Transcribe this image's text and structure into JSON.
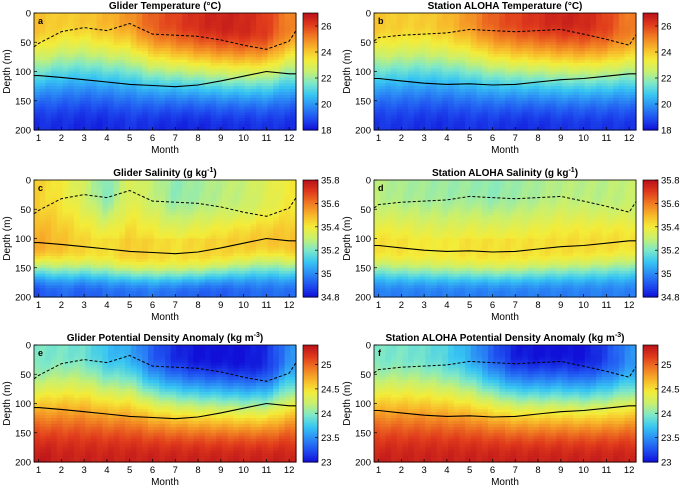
{
  "figure": {
    "description_labels": [
      "a",
      "b",
      "c",
      "d",
      "e",
      "f"
    ]
  },
  "colormap": [
    "#1010d8",
    "#1f4ff0",
    "#2b8bf5",
    "#38c6f2",
    "#7ee8c8",
    "#c8f070",
    "#f4ec38",
    "#f8b62a",
    "#f07a22",
    "#e03a1c",
    "#b8101a"
  ],
  "line_colors": {
    "mld": "#000000",
    "dcm": "#000000"
  },
  "chart_data": [
    {
      "id": "a",
      "type": "heatmap",
      "title": "Glider Temperature (°C)",
      "xlabel": "Month",
      "ylabel": "Depth (m)",
      "xlim": [
        0.8,
        12.3
      ],
      "ylim": [
        200,
        0
      ],
      "xticks": [
        "1",
        "2",
        "3",
        "4",
        "5",
        "6",
        "7",
        "8",
        "9",
        "10",
        "11",
        "12"
      ],
      "yticks": [
        "0",
        "50",
        "100",
        "150",
        "200"
      ],
      "colorbar": {
        "min": 18,
        "max": 27,
        "ticks": [
          "18",
          "20",
          "22",
          "24",
          "26"
        ]
      },
      "surface_values": [
        24.1,
        23.9,
        24.0,
        24.3,
        24.8,
        25.6,
        26.0,
        26.4,
        26.6,
        26.5,
        26.1,
        25.0
      ],
      "deep_values": [
        18.4,
        18.4,
        18.3,
        18.3,
        18.5,
        18.4,
        18.3,
        18.3,
        18.4,
        18.4,
        18.5,
        18.4
      ],
      "lower_line_depth": [
        107,
        110,
        114,
        118,
        122,
        124,
        126,
        123,
        116,
        108,
        100,
        104
      ],
      "dashed_line_depth": [
        52,
        32,
        25,
        30,
        18,
        36,
        38,
        40,
        46,
        55,
        62,
        48
      ]
    },
    {
      "id": "b",
      "type": "heatmap",
      "title": "Station ALOHA Temperature (°C)",
      "xlabel": "Month",
      "ylabel": "",
      "xlim": [
        0.8,
        12.3
      ],
      "ylim": [
        200,
        0
      ],
      "xticks": [
        "1",
        "2",
        "3",
        "4",
        "5",
        "6",
        "7",
        "8",
        "9",
        "10",
        "11",
        "12"
      ],
      "yticks": [
        "0",
        "50",
        "100",
        "150",
        "200"
      ],
      "colorbar": {
        "min": 18,
        "max": 27,
        "ticks": [
          "18",
          "20",
          "22",
          "24",
          "26"
        ]
      },
      "surface_values": [
        24.0,
        23.9,
        23.9,
        24.2,
        24.8,
        25.6,
        26.0,
        26.3,
        26.6,
        26.5,
        26.0,
        25.1
      ],
      "deep_values": [
        18.5,
        18.5,
        18.4,
        18.4,
        18.5,
        18.5,
        18.4,
        18.4,
        18.5,
        18.5,
        18.5,
        18.5
      ],
      "lower_line_depth": [
        112,
        116,
        120,
        122,
        121,
        123,
        122,
        118,
        114,
        112,
        108,
        104
      ],
      "dashed_line_depth": [
        42,
        38,
        36,
        34,
        28,
        30,
        32,
        30,
        28,
        36,
        45,
        55
      ]
    },
    {
      "id": "c",
      "type": "heatmap",
      "title": "Glider Salinity (g kg",
      "title_sup": "-1",
      "title_end": ")",
      "xlabel": "Month",
      "ylabel": "Depth (m)",
      "xlim": [
        0.8,
        12.3
      ],
      "ylim": [
        200,
        0
      ],
      "xticks": [
        "1",
        "2",
        "3",
        "4",
        "5",
        "6",
        "7",
        "8",
        "9",
        "10",
        "11",
        "12"
      ],
      "yticks": [
        "0",
        "50",
        "100",
        "150",
        "200"
      ],
      "colorbar": {
        "min": 34.8,
        "max": 35.8,
        "ticks": [
          "34.8",
          "35",
          "35.2",
          "35.4",
          "35.6",
          "35.8"
        ]
      },
      "surface_values": [
        35.45,
        35.4,
        35.32,
        35.2,
        35.35,
        35.3,
        35.22,
        35.25,
        35.28,
        35.3,
        35.35,
        35.4
      ],
      "mid_values": [
        35.52,
        35.48,
        35.44,
        35.42,
        35.46,
        35.44,
        35.42,
        35.44,
        35.45,
        35.46,
        35.47,
        35.48
      ],
      "deep_values": [
        34.9,
        34.95,
        34.92,
        34.95,
        34.95,
        34.97,
        34.95,
        34.93,
        34.92,
        34.94,
        34.95,
        34.95
      ],
      "lower_line_depth": [
        107,
        110,
        114,
        118,
        122,
        124,
        126,
        123,
        116,
        108,
        100,
        104
      ],
      "dashed_line_depth": [
        52,
        32,
        25,
        30,
        18,
        36,
        38,
        40,
        46,
        55,
        62,
        48
      ]
    },
    {
      "id": "d",
      "type": "heatmap",
      "title": "Station ALOHA Salinity (g kg",
      "title_sup": "-1",
      "title_end": ")",
      "xlabel": "Month",
      "ylabel": "",
      "xlim": [
        0.8,
        12.3
      ],
      "ylim": [
        200,
        0
      ],
      "xticks": [
        "1",
        "2",
        "3",
        "4",
        "5",
        "6",
        "7",
        "8",
        "9",
        "10",
        "11",
        "12"
      ],
      "yticks": [
        "0",
        "50",
        "100",
        "150",
        "200"
      ],
      "colorbar": {
        "min": 34.8,
        "max": 35.8,
        "ticks": [
          "34.8",
          "35",
          "35.2",
          "35.4",
          "35.6",
          "35.8"
        ]
      },
      "surface_values": [
        35.28,
        35.26,
        35.25,
        35.24,
        35.24,
        35.22,
        35.24,
        35.26,
        35.28,
        35.28,
        35.28,
        35.3
      ],
      "mid_values": [
        35.42,
        35.42,
        35.4,
        35.4,
        35.42,
        35.42,
        35.42,
        35.42,
        35.43,
        35.43,
        35.43,
        35.42
      ],
      "deep_values": [
        34.98,
        34.98,
        34.98,
        34.98,
        34.98,
        34.98,
        34.98,
        34.98,
        34.98,
        34.98,
        34.98,
        34.98
      ],
      "lower_line_depth": [
        112,
        116,
        120,
        122,
        121,
        123,
        122,
        118,
        114,
        112,
        108,
        104
      ],
      "dashed_line_depth": [
        42,
        38,
        36,
        34,
        28,
        30,
        32,
        30,
        28,
        36,
        45,
        55
      ]
    },
    {
      "id": "e",
      "type": "heatmap",
      "title": "Glider Potential Density Anomaly (kg m",
      "title_sup": "-3",
      "title_end": ")",
      "xlabel": "Month",
      "ylabel": "Depth (m)",
      "xlim": [
        0.8,
        12.3
      ],
      "ylim": [
        200,
        0
      ],
      "xticks": [
        "1",
        "2",
        "3",
        "4",
        "5",
        "6",
        "7",
        "8",
        "9",
        "10",
        "11",
        "12"
      ],
      "yticks": [
        "0",
        "50",
        "100",
        "150",
        "200"
      ],
      "colorbar": {
        "min": 23,
        "max": 25.4,
        "ticks": [
          "23",
          "23.5",
          "24",
          "24.5",
          "25"
        ]
      },
      "surface_values": [
        23.95,
        23.95,
        23.9,
        23.7,
        23.6,
        23.3,
        23.1,
        23.0,
        23.0,
        23.0,
        23.1,
        23.5
      ],
      "deep_values": [
        25.35,
        25.3,
        25.3,
        25.3,
        25.3,
        25.3,
        25.3,
        25.3,
        25.3,
        25.3,
        25.3,
        25.3
      ],
      "lower_line_depth": [
        107,
        110,
        114,
        118,
        122,
        124,
        126,
        123,
        116,
        108,
        100,
        104
      ],
      "dashed_line_depth": [
        52,
        32,
        25,
        30,
        18,
        36,
        38,
        40,
        46,
        55,
        62,
        48
      ]
    },
    {
      "id": "f",
      "type": "heatmap",
      "title": "Station ALOHA Potential Density Anomaly (kg m",
      "title_sup": "-3",
      "title_end": ")",
      "xlabel": "Month",
      "ylabel": "",
      "xlim": [
        0.8,
        12.3
      ],
      "ylim": [
        200,
        0
      ],
      "xticks": [
        "1",
        "2",
        "3",
        "4",
        "5",
        "6",
        "7",
        "8",
        "9",
        "10",
        "11",
        "12"
      ],
      "yticks": [
        "0",
        "50",
        "100",
        "150",
        "200"
      ],
      "colorbar": {
        "min": 23,
        "max": 25.4,
        "ticks": [
          "23",
          "23.5",
          "24",
          "24.5",
          "25"
        ]
      },
      "surface_values": [
        23.95,
        23.95,
        23.9,
        23.8,
        23.6,
        23.3,
        23.05,
        23.0,
        23.0,
        23.0,
        23.2,
        23.5
      ],
      "deep_values": [
        25.3,
        25.3,
        25.3,
        25.3,
        25.3,
        25.3,
        25.3,
        25.3,
        25.3,
        25.3,
        25.3,
        25.3
      ],
      "lower_line_depth": [
        112,
        116,
        120,
        122,
        121,
        123,
        122,
        118,
        114,
        112,
        108,
        104
      ],
      "dashed_line_depth": [
        42,
        38,
        36,
        34,
        28,
        30,
        32,
        30,
        28,
        36,
        45,
        55
      ]
    }
  ]
}
